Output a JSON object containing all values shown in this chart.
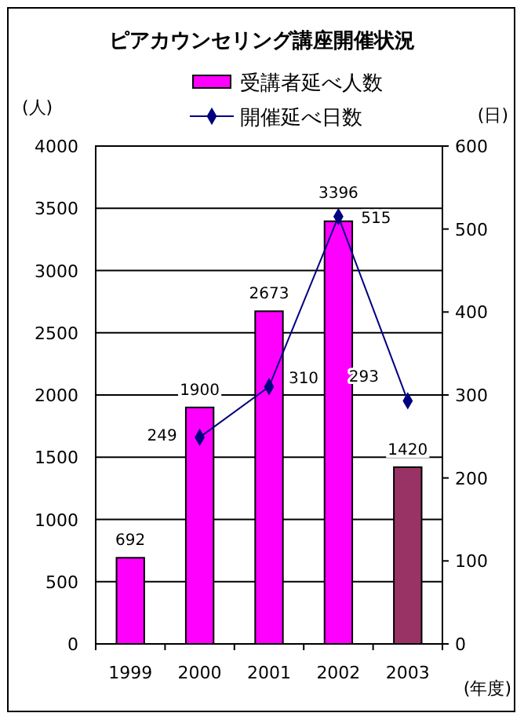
{
  "chart_data": {
    "type": "bar",
    "title": "ピアカウンセリング講座開催状況",
    "xlabel": "(年度)",
    "ylabel": "(人)",
    "y2label": "(日)",
    "categories": [
      "1999",
      "2000",
      "2001",
      "2002",
      "2003"
    ],
    "series": [
      {
        "name": "受講者延べ人数",
        "color": "#ff00ff",
        "colors": [
          "#ff00ff",
          "#ff00ff",
          "#ff00ff",
          "#ff00ff",
          "#993366"
        ],
        "values": [
          692,
          1900,
          2673,
          3396,
          1420
        ]
      },
      {
        "name": "開催延べ日数",
        "type": "line",
        "axis": "y2",
        "color": "#000080",
        "marker": "diamond",
        "values": [
          null,
          249,
          310,
          515,
          293
        ]
      }
    ],
    "ylim": [
      0,
      4000
    ],
    "yticks": [
      0,
      500,
      1000,
      1500,
      2000,
      2500,
      3000,
      3500,
      4000
    ],
    "y2lim": [
      0,
      600
    ],
    "y2ticks": [
      0,
      100,
      200,
      300,
      400,
      500,
      600
    ],
    "grid": "y",
    "legend": "top",
    "data_labels": true
  }
}
